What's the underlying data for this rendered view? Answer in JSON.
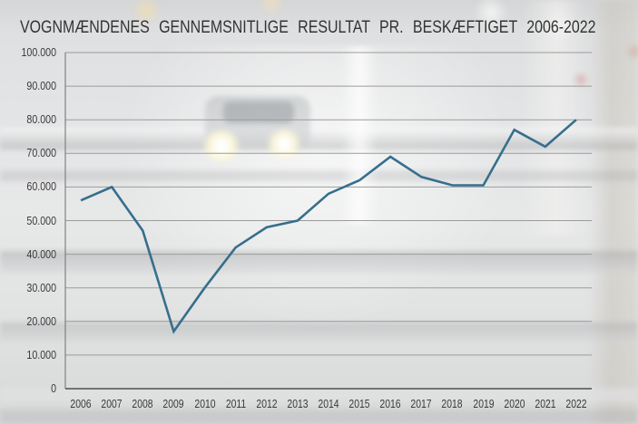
{
  "chart_data": {
    "type": "line",
    "title": "VOGNMÆNDENES GENNEMSNITLIGE RESULTAT PR. BESKÆFTIGET 2006-2022",
    "categories": [
      "2006",
      "2007",
      "2008",
      "2009",
      "2010",
      "2011",
      "2012",
      "2013",
      "2014",
      "2015",
      "2016",
      "2017",
      "2018",
      "2019",
      "2020",
      "2021",
      "2022"
    ],
    "values": [
      56000,
      60000,
      47000,
      17000,
      30000,
      42000,
      48000,
      50000,
      58000,
      62000,
      69000,
      63000,
      60500,
      60500,
      77000,
      72000,
      80000
    ],
    "xlabel": "",
    "ylabel": "",
    "ylim": [
      0,
      100000
    ],
    "ytick_step": 10000,
    "ytick_labels": [
      "0",
      "10.000",
      "20.000",
      "30.000",
      "40.000",
      "50.000",
      "60.000",
      "70.000",
      "80.000",
      "90.000",
      "100.000"
    ],
    "grid": true,
    "legend": false,
    "line_color": "#366f8d",
    "grid_color": "#9b9b9b",
    "axis_color": "#6e6e6e",
    "baseline_color": "#4f4f4f",
    "label_color": "#3a3a3a",
    "title_color": "#333333"
  }
}
